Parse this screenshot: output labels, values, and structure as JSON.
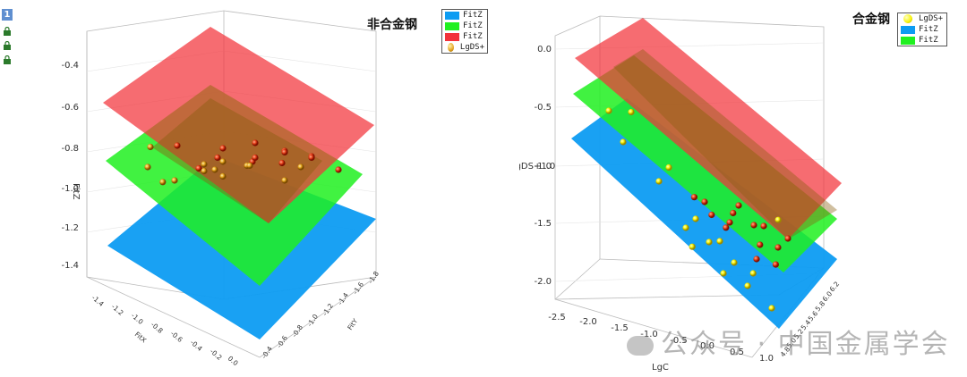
{
  "toolbar": {
    "page_number": "1",
    "icons": [
      "lock-icon",
      "lock-icon",
      "lock-icon"
    ]
  },
  "colors": {
    "red_plane": "#f2333a",
    "green_plane": "#20f020",
    "blue_plane": "#0d9cf2",
    "point_gold": "#e3a21c",
    "point_yellow": "#f6f205",
    "point_red": "#e8401a"
  },
  "watermark": "公众号 · 中国金属学会",
  "chart_data": [
    {
      "type": "scatter3d",
      "title": "非合金钢",
      "zlabel": "FitZ",
      "z_ticks": [
        "-0.4",
        "-0.6",
        "-0.8",
        "-1.0",
        "-1.2",
        "-1.4"
      ],
      "x_axis_label": "FitX",
      "x_ticks": [
        "-1.4",
        "-1.2",
        "-1.0",
        "-0.8",
        "-0.6",
        "-0.4",
        "-0.2",
        "0.0"
      ],
      "y_axis_label": "FitY",
      "y_ticks": [
        "-0.4",
        "-0.6",
        "-0.8",
        "-1.0",
        "-1.2",
        "-1.4",
        "-1.6",
        "-1.8"
      ],
      "legend": {
        "position": "top-right",
        "entries": [
          "FitZ",
          "FitZ",
          "FitZ",
          "LgDS+"
        ]
      },
      "series": [
        {
          "name": "FitZ",
          "kind": "surface",
          "color": "blue",
          "z_level": -1.2
        },
        {
          "name": "FitZ",
          "kind": "surface",
          "color": "green",
          "z_level": -0.95
        },
        {
          "name": "FitZ",
          "kind": "surface",
          "color": "red",
          "z_level": -0.65
        },
        {
          "name": "LgDS+",
          "kind": "points",
          "color": "gold",
          "points": [
            {
              "u": 0.15,
              "v": 0.2,
              "z": -0.75,
              "c": "gold"
            },
            {
              "u": 0.22,
              "v": 0.15,
              "z": -0.9,
              "c": "gold"
            },
            {
              "u": 0.35,
              "v": 0.3,
              "z": -0.85,
              "c": "red"
            },
            {
              "u": 0.45,
              "v": 0.25,
              "z": -0.7,
              "c": "red"
            },
            {
              "u": 0.55,
              "v": 0.4,
              "z": -0.8,
              "c": "gold"
            },
            {
              "u": 0.6,
              "v": 0.35,
              "z": -0.6,
              "c": "red"
            },
            {
              "u": 0.7,
              "v": 0.5,
              "z": -0.7,
              "c": "red"
            },
            {
              "u": 0.3,
              "v": 0.6,
              "z": -1.05,
              "c": "gold"
            },
            {
              "u": 0.4,
              "v": 0.55,
              "z": -0.95,
              "c": "gold"
            },
            {
              "u": 0.5,
              "v": 0.7,
              "z": -1.0,
              "c": "red"
            },
            {
              "u": 0.65,
              "v": 0.65,
              "z": -0.9,
              "c": "red"
            },
            {
              "u": 0.75,
              "v": 0.3,
              "z": -0.55,
              "c": "red"
            },
            {
              "u": 0.2,
              "v": 0.45,
              "z": -1.1,
              "c": "gold"
            },
            {
              "u": 0.25,
              "v": 0.8,
              "z": -1.25,
              "c": "gold"
            },
            {
              "u": 0.45,
              "v": 0.85,
              "z": -1.15,
              "c": "gold"
            },
            {
              "u": 0.55,
              "v": 0.55,
              "z": -0.85,
              "c": "red"
            },
            {
              "u": 0.8,
              "v": 0.6,
              "z": -0.75,
              "c": "red"
            },
            {
              "u": 0.85,
              "v": 0.4,
              "z": -0.6,
              "c": "red"
            },
            {
              "u": 0.6,
              "v": 0.9,
              "z": -1.2,
              "c": "gold"
            },
            {
              "u": 0.35,
              "v": 0.75,
              "z": -1.2,
              "c": "gold"
            },
            {
              "u": 0.1,
              "v": 0.35,
              "z": -1.0,
              "c": "gold"
            },
            {
              "u": 0.5,
              "v": 0.15,
              "z": -0.55,
              "c": "red"
            },
            {
              "u": 0.4,
              "v": 0.4,
              "z": -0.9,
              "c": "gold"
            },
            {
              "u": 0.7,
              "v": 0.8,
              "z": -1.0,
              "c": "gold"
            },
            {
              "u": 0.9,
              "v": 0.7,
              "z": -0.85,
              "c": "red"
            },
            {
              "u": 0.3,
              "v": 0.1,
              "z": -0.6,
              "c": "red"
            }
          ]
        }
      ]
    },
    {
      "type": "scatter3d",
      "title": "合金钢",
      "zlabel": "LgDS+1.0",
      "z_ticks": [
        "0.0",
        "-0.5",
        "-1.0",
        "-1.5",
        "-2.0"
      ],
      "x_axis_label": "LgC",
      "x_ticks": [
        "-2.5",
        "-2.0",
        "-1.5",
        "-1.0",
        "-0.5",
        "0.0",
        "0.5",
        "1.0"
      ],
      "y_ticks": [
        "4.8",
        "5.0",
        "5.2",
        "5.4",
        "5.6",
        "5.8",
        "6.0",
        "6.2"
      ],
      "legend": {
        "position": "top-right",
        "entries": [
          "LgDS+",
          "FitZ",
          "FitZ"
        ]
      },
      "series": [
        {
          "name": "LgDS+",
          "kind": "points",
          "color": "yellow",
          "points": [
            {
              "u": 0.1,
              "v": 0.2,
              "z": -0.6,
              "c": "yellow"
            },
            {
              "u": 0.15,
              "v": 0.35,
              "z": -0.9,
              "c": "yellow"
            },
            {
              "u": 0.3,
              "v": 0.4,
              "z": -1.1,
              "c": "yellow"
            },
            {
              "u": 0.45,
              "v": 0.5,
              "z": -1.3,
              "c": "yellow"
            },
            {
              "u": 0.5,
              "v": 0.35,
              "z": -1.0,
              "c": "red"
            },
            {
              "u": 0.6,
              "v": 0.45,
              "z": -1.1,
              "c": "red"
            },
            {
              "u": 0.65,
              "v": 0.3,
              "z": -0.8,
              "c": "red"
            },
            {
              "u": 0.7,
              "v": 0.5,
              "z": -1.0,
              "c": "red"
            },
            {
              "u": 0.55,
              "v": 0.55,
              "z": -1.4,
              "c": "yellow"
            },
            {
              "u": 0.6,
              "v": 0.7,
              "z": -1.6,
              "c": "yellow"
            },
            {
              "u": 0.7,
              "v": 0.65,
              "z": -1.4,
              "c": "red"
            },
            {
              "u": 0.75,
              "v": 0.4,
              "z": -0.9,
              "c": "red"
            },
            {
              "u": 0.8,
              "v": 0.55,
              "z": -1.1,
              "c": "red"
            },
            {
              "u": 0.5,
              "v": 0.6,
              "z": -1.5,
              "c": "yellow"
            },
            {
              "u": 0.4,
              "v": 0.6,
              "z": -1.5,
              "c": "yellow"
            },
            {
              "u": 0.65,
              "v": 0.8,
              "z": -1.8,
              "c": "yellow"
            },
            {
              "u": 0.55,
              "v": 0.75,
              "z": -1.8,
              "c": "yellow"
            },
            {
              "u": 0.85,
              "v": 0.45,
              "z": -0.9,
              "c": "red"
            },
            {
              "u": 0.72,
              "v": 0.58,
              "z": -1.2,
              "c": "red"
            },
            {
              "u": 0.62,
              "v": 0.38,
              "z": -0.95,
              "c": "red"
            },
            {
              "u": 0.35,
              "v": 0.3,
              "z": -0.85,
              "c": "yellow"
            },
            {
              "u": 0.45,
              "v": 0.42,
              "z": -1.05,
              "c": "red"
            },
            {
              "u": 0.58,
              "v": 0.5,
              "z": -1.2,
              "c": "red"
            },
            {
              "u": 0.68,
              "v": 0.72,
              "z": -1.6,
              "c": "yellow"
            },
            {
              "u": 0.78,
              "v": 0.68,
              "z": -1.35,
              "c": "red"
            },
            {
              "u": 0.52,
              "v": 0.48,
              "z": -1.15,
              "c": "red"
            },
            {
              "u": 0.42,
              "v": 0.7,
              "z": -1.7,
              "c": "yellow"
            },
            {
              "u": 0.82,
              "v": 0.3,
              "z": -0.7,
              "c": "yellow"
            },
            {
              "u": 0.2,
              "v": 0.15,
              "z": -0.45,
              "c": "yellow"
            },
            {
              "u": 0.75,
              "v": 0.85,
              "z": -1.9,
              "c": "yellow"
            }
          ]
        },
        {
          "name": "FitZ",
          "kind": "surface",
          "color": "blue",
          "z_level": -1.6
        },
        {
          "name": "FitZ",
          "kind": "surface",
          "color": "green",
          "z_level": -1.2
        }
      ]
    }
  ]
}
